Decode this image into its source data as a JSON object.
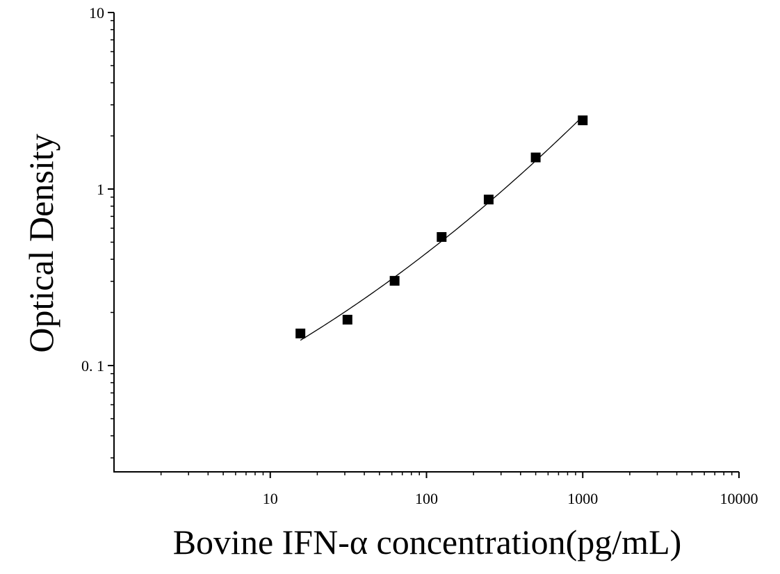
{
  "chart_data": {
    "type": "scatter",
    "title": "",
    "xlabel": "Bovine IFN-α concentration(pg/mL)",
    "ylabel": "Optical Density",
    "xscale": "log",
    "yscale": "log",
    "xlim": [
      1,
      10000
    ],
    "ylim": [
      0.025,
      10
    ],
    "grid": false,
    "legend": "none",
    "x_ticks": [
      {
        "value": 10,
        "label": "10"
      },
      {
        "value": 100,
        "label": "100"
      },
      {
        "value": 1000,
        "label": "1000"
      },
      {
        "value": 10000,
        "label": "10000"
      }
    ],
    "y_ticks": [
      {
        "value": 0.1,
        "label": "0. 1"
      },
      {
        "value": 1,
        "label": "1"
      },
      {
        "value": 10,
        "label": "10"
      }
    ],
    "series": [
      {
        "marker": "square",
        "color": "#000000",
        "points": [
          {
            "x": 15.6,
            "y": 0.152
          },
          {
            "x": 31.2,
            "y": 0.182
          },
          {
            "x": 62.5,
            "y": 0.302
          },
          {
            "x": 125,
            "y": 0.535
          },
          {
            "x": 250,
            "y": 0.872
          },
          {
            "x": 500,
            "y": 1.51
          },
          {
            "x": 1000,
            "y": 2.45
          }
        ]
      }
    ],
    "fit_curve": {
      "color": "#000000",
      "x_range": [
        15.6,
        1000
      ]
    }
  }
}
